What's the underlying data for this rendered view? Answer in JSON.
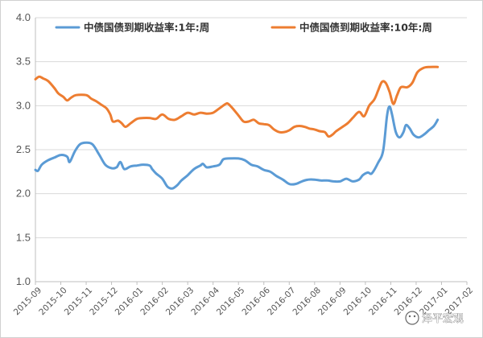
{
  "chart_data": {
    "type": "line",
    "title": "",
    "xlabel": "",
    "ylabel": "",
    "ylim": [
      1.0,
      4.0
    ],
    "yticks": [
      "1.0",
      "1.5",
      "2.0",
      "2.5",
      "3.0",
      "3.5",
      "4.0"
    ],
    "categories": [
      "2015-09",
      "2015-10",
      "2015-11",
      "2015-12",
      "2016-01",
      "2016-02",
      "2016-03",
      "2016-04",
      "2016-05",
      "2016-06",
      "2016-07",
      "2016-08",
      "2016-09",
      "2016-10",
      "2016-11",
      "2016-12",
      "2017-01",
      "2017-02"
    ],
    "grid": "horizontal",
    "legend_position": "top",
    "series": [
      {
        "name": "中债国债到期收益率:1年:周",
        "color": "#5b9bd5",
        "values": [
          [
            0.0,
            2.27
          ],
          [
            0.1,
            2.26
          ],
          [
            0.25,
            2.33
          ],
          [
            0.5,
            2.38
          ],
          [
            0.75,
            2.41
          ],
          [
            1.0,
            2.44
          ],
          [
            1.25,
            2.42
          ],
          [
            1.35,
            2.36
          ],
          [
            1.55,
            2.48
          ],
          [
            1.75,
            2.56
          ],
          [
            2.0,
            2.58
          ],
          [
            2.25,
            2.56
          ],
          [
            2.5,
            2.45
          ],
          [
            2.75,
            2.33
          ],
          [
            3.0,
            2.29
          ],
          [
            3.2,
            2.3
          ],
          [
            3.35,
            2.36
          ],
          [
            3.5,
            2.28
          ],
          [
            3.75,
            2.31
          ],
          [
            4.0,
            2.32
          ],
          [
            4.25,
            2.33
          ],
          [
            4.5,
            2.32
          ],
          [
            4.6,
            2.28
          ],
          [
            4.75,
            2.23
          ],
          [
            5.0,
            2.17
          ],
          [
            5.2,
            2.08
          ],
          [
            5.4,
            2.06
          ],
          [
            5.6,
            2.1
          ],
          [
            5.75,
            2.15
          ],
          [
            6.0,
            2.21
          ],
          [
            6.25,
            2.28
          ],
          [
            6.5,
            2.32
          ],
          [
            6.6,
            2.34
          ],
          [
            6.75,
            2.3
          ],
          [
            7.0,
            2.31
          ],
          [
            7.25,
            2.33
          ],
          [
            7.4,
            2.39
          ],
          [
            7.6,
            2.4
          ],
          [
            8.0,
            2.4
          ],
          [
            8.25,
            2.38
          ],
          [
            8.5,
            2.33
          ],
          [
            8.75,
            2.31
          ],
          [
            9.0,
            2.27
          ],
          [
            9.25,
            2.25
          ],
          [
            9.5,
            2.2
          ],
          [
            9.75,
            2.16
          ],
          [
            10.0,
            2.11
          ],
          [
            10.25,
            2.11
          ],
          [
            10.5,
            2.14
          ],
          [
            10.75,
            2.16
          ],
          [
            11.0,
            2.16
          ],
          [
            11.25,
            2.15
          ],
          [
            11.5,
            2.15
          ],
          [
            11.75,
            2.14
          ],
          [
            12.0,
            2.14
          ],
          [
            12.25,
            2.17
          ],
          [
            12.5,
            2.14
          ],
          [
            12.75,
            2.16
          ],
          [
            12.9,
            2.21
          ],
          [
            13.1,
            2.24
          ],
          [
            13.25,
            2.23
          ],
          [
            13.5,
            2.35
          ],
          [
            13.7,
            2.49
          ],
          [
            13.85,
            2.88
          ],
          [
            13.95,
            2.99
          ],
          [
            14.05,
            2.9
          ],
          [
            14.2,
            2.7
          ],
          [
            14.35,
            2.64
          ],
          [
            14.5,
            2.7
          ],
          [
            14.6,
            2.78
          ],
          [
            14.75,
            2.74
          ],
          [
            14.9,
            2.67
          ],
          [
            15.1,
            2.64
          ],
          [
            15.3,
            2.67
          ],
          [
            15.5,
            2.72
          ],
          [
            15.7,
            2.77
          ],
          [
            15.85,
            2.84
          ]
        ]
      },
      {
        "name": "中债国债到期收益率:10年:周",
        "color": "#ed7d31",
        "values": [
          [
            0.0,
            3.3
          ],
          [
            0.15,
            3.33
          ],
          [
            0.3,
            3.31
          ],
          [
            0.5,
            3.28
          ],
          [
            0.75,
            3.2
          ],
          [
            0.9,
            3.14
          ],
          [
            1.1,
            3.1
          ],
          [
            1.25,
            3.06
          ],
          [
            1.4,
            3.09
          ],
          [
            1.6,
            3.12
          ],
          [
            2.0,
            3.12
          ],
          [
            2.2,
            3.08
          ],
          [
            2.4,
            3.05
          ],
          [
            2.6,
            3.01
          ],
          [
            2.8,
            2.97
          ],
          [
            2.95,
            2.9
          ],
          [
            3.05,
            2.82
          ],
          [
            3.25,
            2.83
          ],
          [
            3.4,
            2.8
          ],
          [
            3.55,
            2.76
          ],
          [
            3.75,
            2.8
          ],
          [
            4.0,
            2.85
          ],
          [
            4.25,
            2.86
          ],
          [
            4.5,
            2.86
          ],
          [
            4.75,
            2.85
          ],
          [
            5.0,
            2.9
          ],
          [
            5.25,
            2.85
          ],
          [
            5.5,
            2.84
          ],
          [
            5.75,
            2.88
          ],
          [
            6.0,
            2.92
          ],
          [
            6.25,
            2.9
          ],
          [
            6.5,
            2.92
          ],
          [
            6.75,
            2.91
          ],
          [
            7.0,
            2.92
          ],
          [
            7.25,
            2.97
          ],
          [
            7.5,
            3.02
          ],
          [
            7.6,
            3.02
          ],
          [
            7.8,
            2.96
          ],
          [
            8.0,
            2.89
          ],
          [
            8.2,
            2.82
          ],
          [
            8.4,
            2.82
          ],
          [
            8.6,
            2.84
          ],
          [
            8.8,
            2.8
          ],
          [
            9.0,
            2.79
          ],
          [
            9.2,
            2.78
          ],
          [
            9.4,
            2.73
          ],
          [
            9.6,
            2.7
          ],
          [
            9.8,
            2.7
          ],
          [
            10.0,
            2.72
          ],
          [
            10.2,
            2.76
          ],
          [
            10.4,
            2.77
          ],
          [
            10.6,
            2.76
          ],
          [
            10.8,
            2.74
          ],
          [
            11.0,
            2.73
          ],
          [
            11.2,
            2.71
          ],
          [
            11.4,
            2.7
          ],
          [
            11.55,
            2.65
          ],
          [
            11.7,
            2.67
          ],
          [
            11.85,
            2.71
          ],
          [
            12.1,
            2.76
          ],
          [
            12.3,
            2.8
          ],
          [
            12.5,
            2.86
          ],
          [
            12.75,
            2.93
          ],
          [
            12.95,
            2.88
          ],
          [
            13.15,
            3.0
          ],
          [
            13.35,
            3.07
          ],
          [
            13.5,
            3.17
          ],
          [
            13.65,
            3.27
          ],
          [
            13.8,
            3.26
          ],
          [
            13.95,
            3.16
          ],
          [
            14.1,
            3.02
          ],
          [
            14.25,
            3.12
          ],
          [
            14.4,
            3.21
          ],
          [
            14.65,
            3.21
          ],
          [
            14.85,
            3.26
          ],
          [
            15.05,
            3.38
          ],
          [
            15.3,
            3.43
          ],
          [
            15.55,
            3.44
          ],
          [
            15.85,
            3.44
          ]
        ]
      }
    ]
  },
  "watermark": {
    "text": "泽平宏观",
    "icon": "wechat-icon"
  }
}
